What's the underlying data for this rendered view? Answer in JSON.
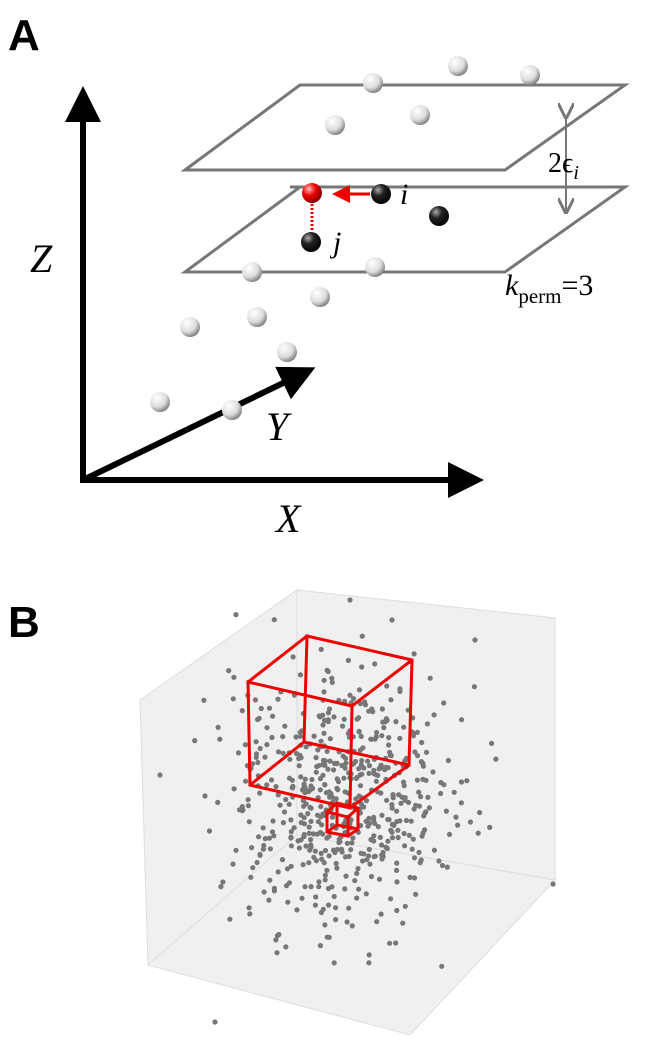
{
  "panel_a": {
    "label": "A",
    "axis_z": "Z",
    "axis_y": "Y",
    "axis_x": "X",
    "point_i": "i",
    "point_j": "j",
    "epsilon_label": {
      "main": "2ϵ",
      "sub": "i"
    },
    "kperm_label": {
      "main": "k",
      "sub": "perm",
      "rest": "=3"
    }
  },
  "panel_b": {
    "label": "B"
  }
}
